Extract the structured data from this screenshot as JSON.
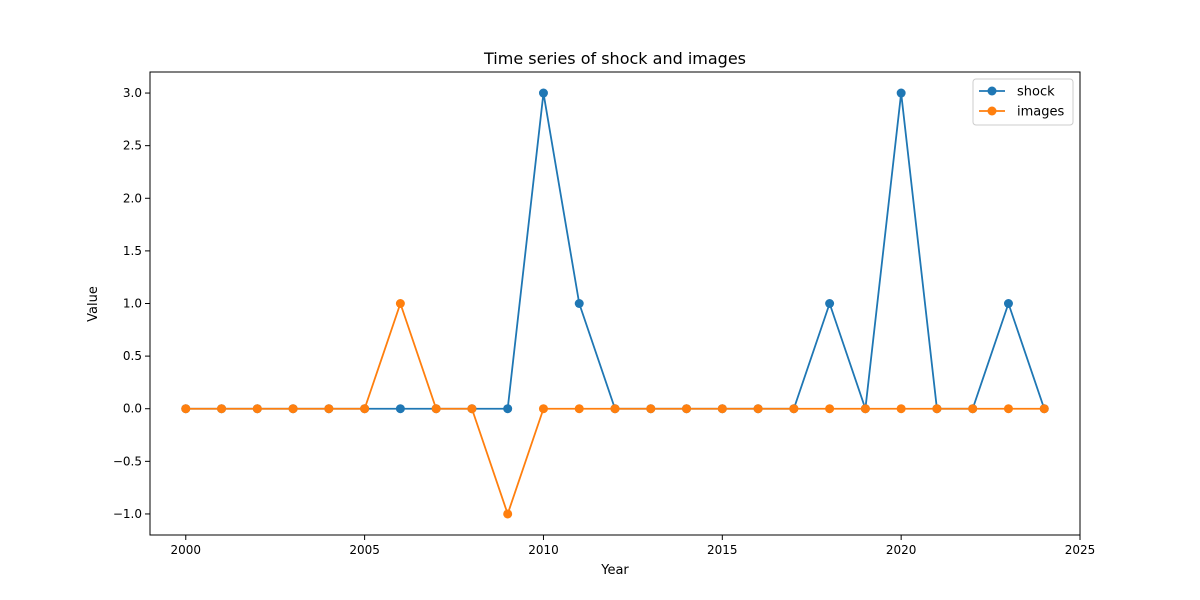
{
  "chart_data": {
    "type": "line",
    "title": "Time series of shock and images",
    "xlabel": "Year",
    "ylabel": "Value",
    "xlim": [
      1999,
      2025
    ],
    "ylim": [
      -1.2,
      3.2
    ],
    "xticks": [
      2000,
      2005,
      2010,
      2015,
      2020,
      2025
    ],
    "yticks": [
      -1.0,
      -0.5,
      0.0,
      0.5,
      1.0,
      1.5,
      2.0,
      2.5,
      3.0
    ],
    "ytick_labels": [
      "−1.0",
      "−0.5",
      "0.0",
      "0.5",
      "1.0",
      "1.5",
      "2.0",
      "2.5",
      "3.0"
    ],
    "grid": false,
    "legend_position": "top-right",
    "x": [
      2000,
      2001,
      2002,
      2003,
      2004,
      2005,
      2006,
      2007,
      2008,
      2009,
      2010,
      2011,
      2012,
      2013,
      2014,
      2015,
      2016,
      2017,
      2018,
      2019,
      2020,
      2021,
      2022,
      2023,
      2024
    ],
    "series": [
      {
        "name": "shock",
        "color": "#1f77b4",
        "values": [
          0,
          0,
          0,
          0,
          0,
          0,
          0,
          0,
          0,
          0,
          3,
          1,
          0,
          0,
          0,
          0,
          0,
          0,
          1,
          0,
          3,
          0,
          0,
          1,
          0
        ]
      },
      {
        "name": "images",
        "color": "#ff7f0e",
        "values": [
          0,
          0,
          0,
          0,
          0,
          0,
          1,
          0,
          0,
          -1,
          0,
          0,
          0,
          0,
          0,
          0,
          0,
          0,
          0,
          0,
          0,
          0,
          0,
          0,
          0
        ]
      }
    ]
  }
}
